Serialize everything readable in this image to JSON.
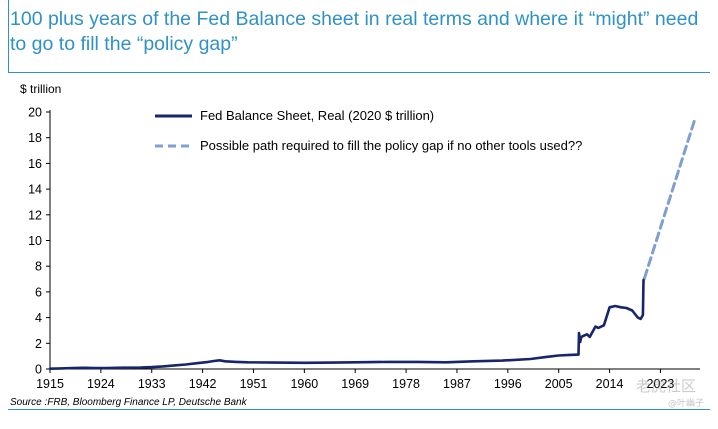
{
  "title": "100 plus years of the Fed Balance sheet in real terms and where it “might” need to go to fill the “policy gap”",
  "source": "Source :FRB, Bloomberg Finance LP, Deutsche Bank",
  "watermark": "老虎社区",
  "watermark_sub": "@叶幽子",
  "colors": {
    "accent": "#2f92c6",
    "actual": "#17256b",
    "projection": "#7f9fd3"
  },
  "chart_data": {
    "type": "line",
    "ylabel": "$ trillion",
    "ylim": [
      0,
      20
    ],
    "yticks": [
      0,
      2,
      4,
      6,
      8,
      10,
      12,
      14,
      16,
      18,
      20
    ],
    "xlim": [
      1915,
      2030
    ],
    "xticks": [
      1915,
      1924,
      1933,
      1942,
      1951,
      1960,
      1969,
      1978,
      1987,
      1996,
      2005,
      2014,
      2023
    ],
    "legend_position": "top-left",
    "series": [
      {
        "name": "Fed Balance Sheet, Real (2020 $ trillion)",
        "style": "solid",
        "x": [
          1915,
          1917,
          1919,
          1921,
          1923,
          1925,
          1928,
          1931,
          1933,
          1935,
          1937,
          1939,
          1941,
          1943,
          1944,
          1945,
          1946,
          1948,
          1950,
          1955,
          1960,
          1965,
          1969,
          1975,
          1980,
          1985,
          1990,
          1995,
          2000,
          2003,
          2005,
          2007,
          2008.5,
          2008.6,
          2008.8,
          2009,
          2009.5,
          2010,
          2010.5,
          2011,
          2011.5,
          2012,
          2013,
          2014,
          2015,
          2016,
          2017,
          2018,
          2019,
          2019.5,
          2019.9,
          2020,
          2020.2
        ],
        "values": [
          0.02,
          0.05,
          0.08,
          0.09,
          0.07,
          0.08,
          0.1,
          0.12,
          0.15,
          0.2,
          0.28,
          0.35,
          0.45,
          0.55,
          0.62,
          0.68,
          0.6,
          0.55,
          0.52,
          0.5,
          0.48,
          0.5,
          0.52,
          0.55,
          0.55,
          0.52,
          0.6,
          0.65,
          0.78,
          0.95,
          1.05,
          1.1,
          1.12,
          2.8,
          2.1,
          2.5,
          2.6,
          2.7,
          2.5,
          2.9,
          3.3,
          3.2,
          3.4,
          4.8,
          4.9,
          4.8,
          4.75,
          4.55,
          4.0,
          3.9,
          4.2,
          6.9,
          7.1
        ]
      },
      {
        "name": "Possible path required to fill the policy gap if no other tools used??",
        "style": "dashed",
        "x": [
          2020.2,
          2029
        ],
        "values": [
          7.1,
          19.3
        ]
      }
    ]
  }
}
